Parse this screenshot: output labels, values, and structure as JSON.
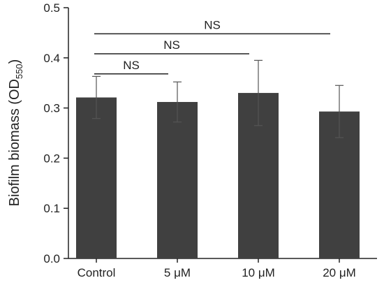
{
  "chart_data": {
    "type": "bar",
    "categories": [
      "Control",
      "5 μM",
      "10 μM",
      "20 μM"
    ],
    "values": [
      0.321,
      0.312,
      0.33,
      0.293
    ],
    "errors": [
      0.042,
      0.04,
      0.065,
      0.052
    ],
    "ylabel_main": "Biofilm biomass (OD",
    "ylabel_sub": "550",
    "ylabel_end": ")",
    "ylim": [
      0,
      0.5
    ],
    "yticks": [
      "0.0",
      "0.1",
      "0.2",
      "0.3",
      "0.4",
      "0.5"
    ],
    "bar_color": "#404040",
    "comparisons": [
      {
        "from": 0,
        "to": 1,
        "label": "NS",
        "y": 0.368
      },
      {
        "from": 0,
        "to": 2,
        "label": "NS",
        "y": 0.408
      },
      {
        "from": 0,
        "to": 3,
        "label": "NS",
        "y": 0.448
      }
    ],
    "grid": false
  }
}
